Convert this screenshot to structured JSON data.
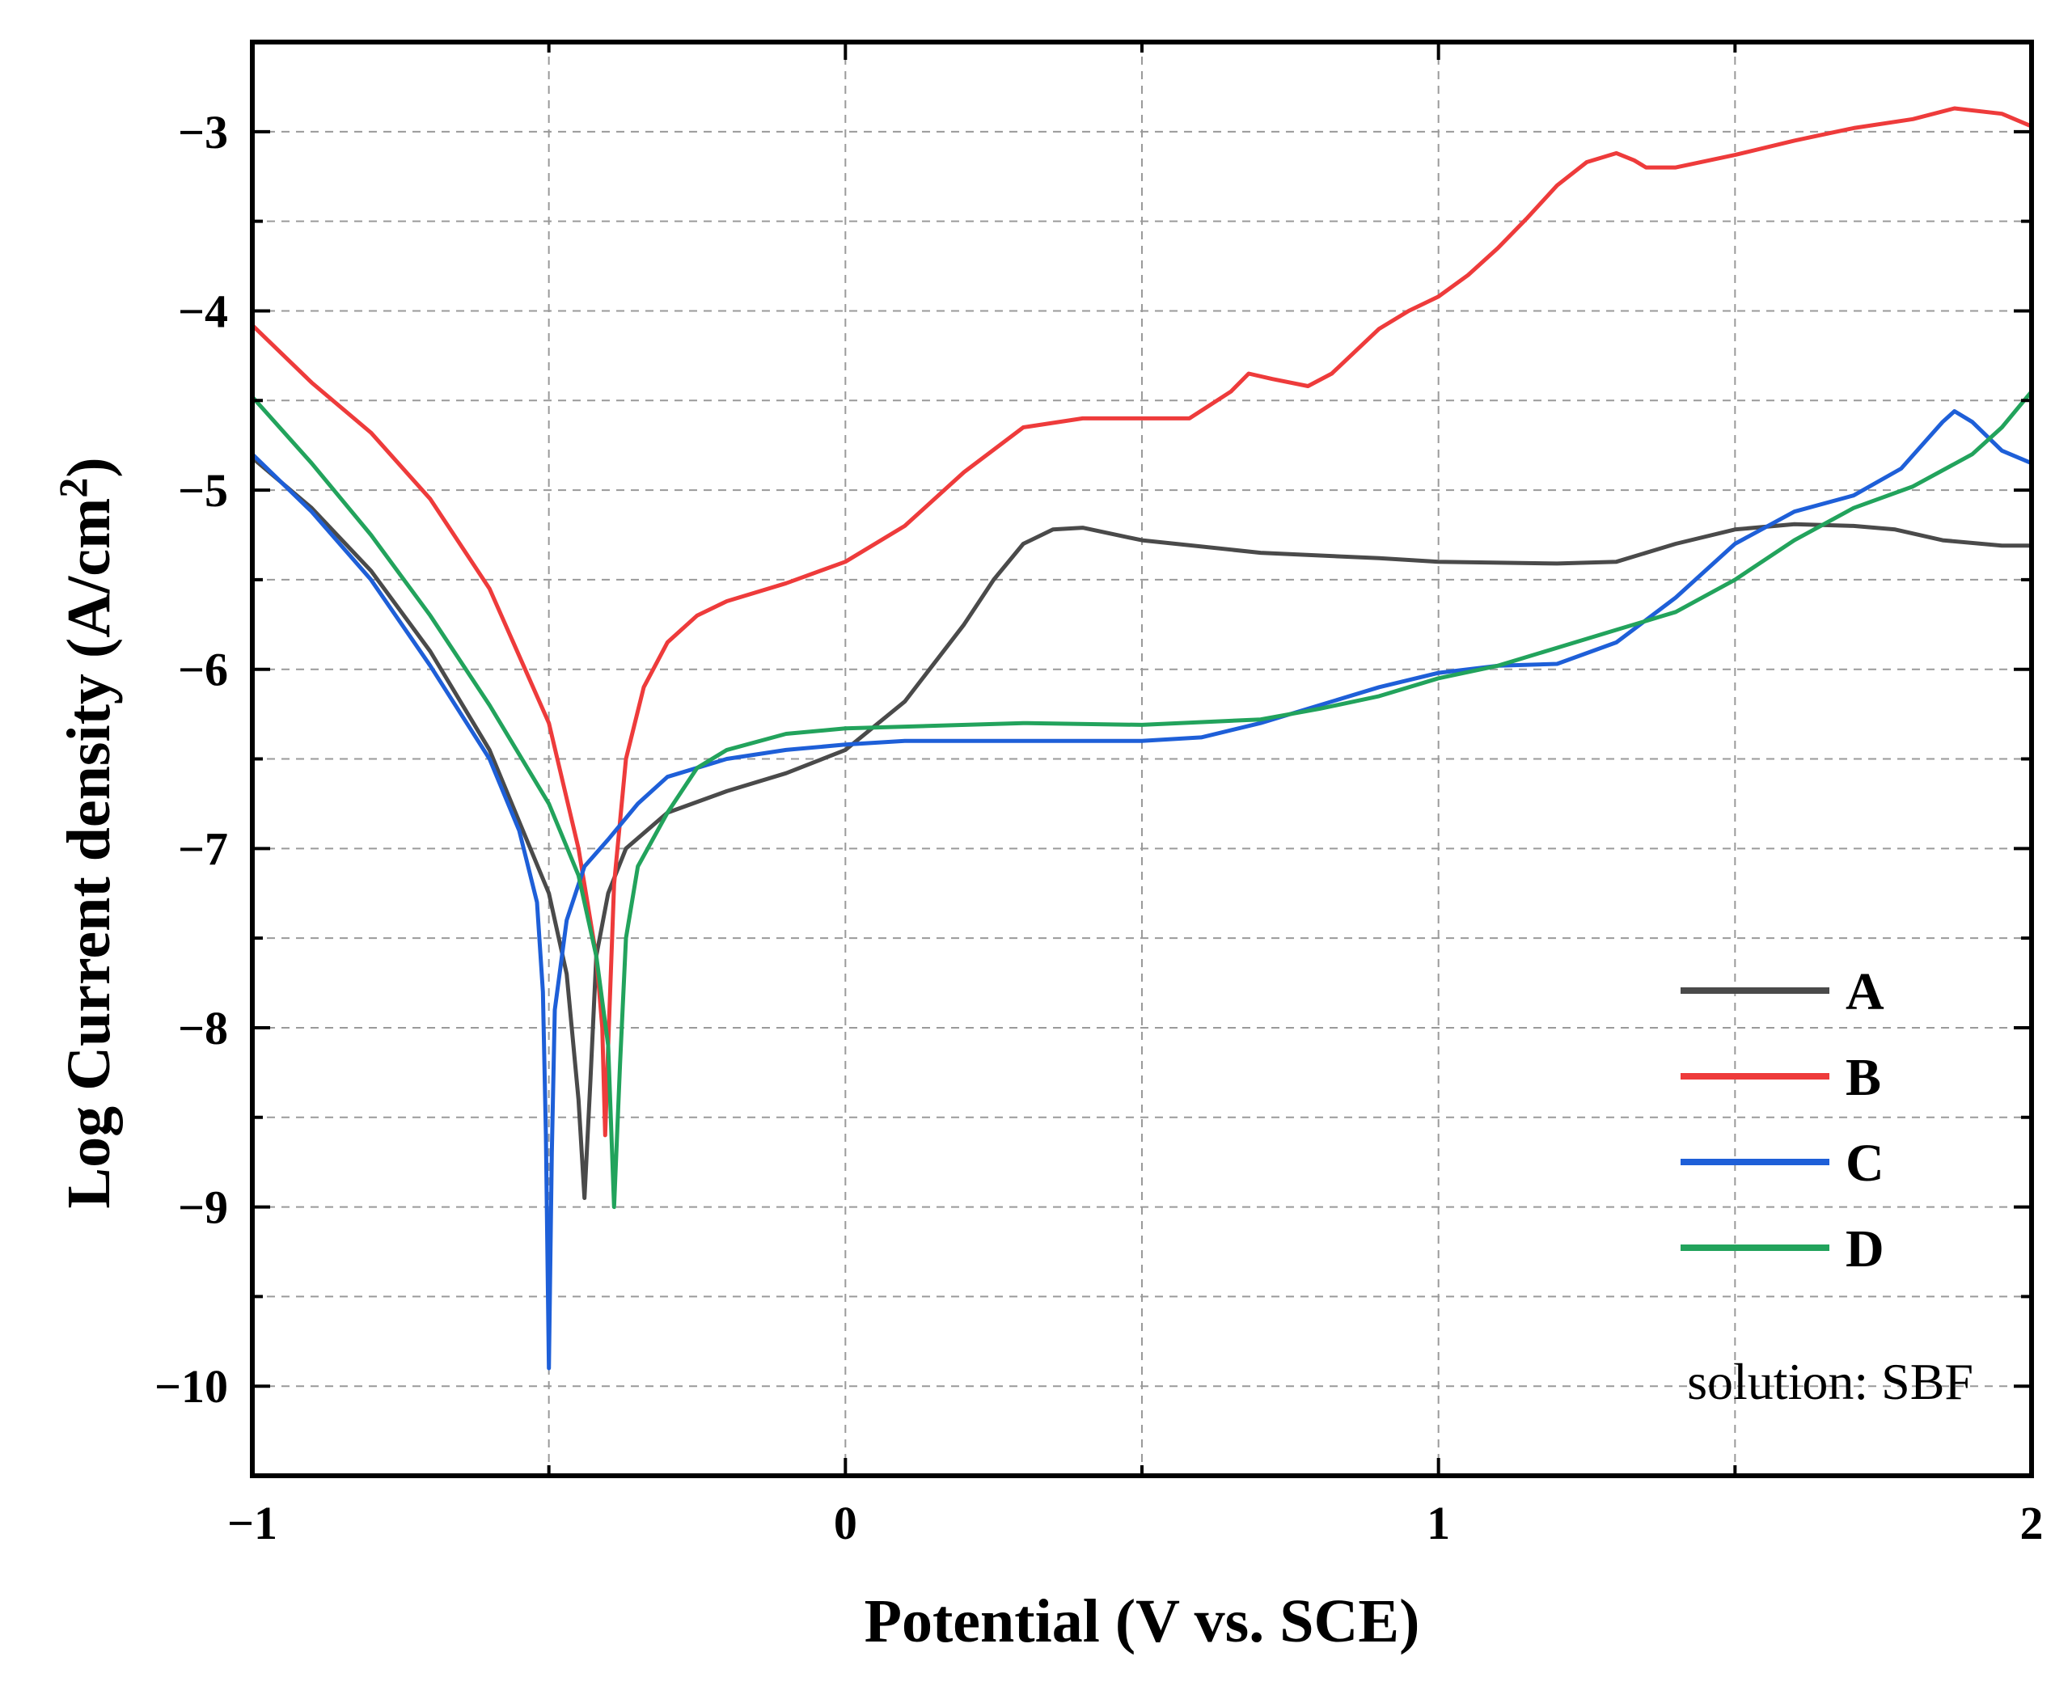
{
  "chart_data": {
    "type": "line",
    "title": "",
    "xlabel": "Potential (V vs. SCE)",
    "ylabel_main": "Log Current density (A/cm",
    "ylabel_sup": "2",
    "ylabel_close": ")",
    "xlim": [
      -1,
      2
    ],
    "ylim": [
      -10.5,
      -2.5
    ],
    "xticks": [
      -1,
      0,
      1,
      2
    ],
    "xtick_labels": [
      "−1",
      "0",
      "1",
      "2"
    ],
    "yticks": [
      -10,
      -9,
      -8,
      -7,
      -6,
      -5,
      -4,
      -3
    ],
    "ytick_labels": [
      "−10",
      "−9",
      "−8",
      "−7",
      "−6",
      "−5",
      "−4",
      "−3"
    ],
    "grid": true,
    "legend_position": "bottom-right",
    "annotation": "solution: SBF",
    "series": [
      {
        "name": "A",
        "color": "#4a4a4a",
        "points": [
          [
            -1.0,
            -4.82
          ],
          [
            -0.9,
            -5.1
          ],
          [
            -0.8,
            -5.45
          ],
          [
            -0.7,
            -5.9
          ],
          [
            -0.6,
            -6.45
          ],
          [
            -0.55,
            -6.85
          ],
          [
            -0.5,
            -7.25
          ],
          [
            -0.47,
            -7.7
          ],
          [
            -0.45,
            -8.4
          ],
          [
            -0.44,
            -8.95
          ],
          [
            -0.43,
            -8.3
          ],
          [
            -0.42,
            -7.6
          ],
          [
            -0.4,
            -7.25
          ],
          [
            -0.37,
            -7.0
          ],
          [
            -0.3,
            -6.8
          ],
          [
            -0.2,
            -6.68
          ],
          [
            -0.1,
            -6.58
          ],
          [
            0.0,
            -6.45
          ],
          [
            0.1,
            -6.18
          ],
          [
            0.2,
            -5.75
          ],
          [
            0.25,
            -5.5
          ],
          [
            0.3,
            -5.3
          ],
          [
            0.35,
            -5.22
          ],
          [
            0.4,
            -5.21
          ],
          [
            0.5,
            -5.28
          ],
          [
            0.7,
            -5.35
          ],
          [
            0.9,
            -5.38
          ],
          [
            1.0,
            -5.4
          ],
          [
            1.2,
            -5.41
          ],
          [
            1.3,
            -5.4
          ],
          [
            1.4,
            -5.3
          ],
          [
            1.5,
            -5.22
          ],
          [
            1.6,
            -5.19
          ],
          [
            1.7,
            -5.2
          ],
          [
            1.77,
            -5.22
          ],
          [
            1.85,
            -5.28
          ],
          [
            1.95,
            -5.31
          ],
          [
            2.0,
            -5.31
          ]
        ]
      },
      {
        "name": "B",
        "color": "#ee3b3b",
        "points": [
          [
            -1.0,
            -4.08
          ],
          [
            -0.9,
            -4.4
          ],
          [
            -0.8,
            -4.68
          ],
          [
            -0.7,
            -5.05
          ],
          [
            -0.6,
            -5.55
          ],
          [
            -0.5,
            -6.3
          ],
          [
            -0.45,
            -7.0
          ],
          [
            -0.42,
            -7.6
          ],
          [
            -0.41,
            -8.0
          ],
          [
            -0.405,
            -8.6
          ],
          [
            -0.4,
            -8.1
          ],
          [
            -0.39,
            -7.2
          ],
          [
            -0.37,
            -6.5
          ],
          [
            -0.34,
            -6.1
          ],
          [
            -0.3,
            -5.85
          ],
          [
            -0.25,
            -5.7
          ],
          [
            -0.2,
            -5.62
          ],
          [
            -0.1,
            -5.52
          ],
          [
            0.0,
            -5.4
          ],
          [
            0.1,
            -5.2
          ],
          [
            0.2,
            -4.9
          ],
          [
            0.3,
            -4.65
          ],
          [
            0.4,
            -4.6
          ],
          [
            0.5,
            -4.6
          ],
          [
            0.58,
            -4.6
          ],
          [
            0.65,
            -4.45
          ],
          [
            0.68,
            -4.35
          ],
          [
            0.72,
            -4.38
          ],
          [
            0.78,
            -4.42
          ],
          [
            0.82,
            -4.35
          ],
          [
            0.9,
            -4.1
          ],
          [
            0.95,
            -4.0
          ],
          [
            1.0,
            -3.92
          ],
          [
            1.05,
            -3.8
          ],
          [
            1.1,
            -3.65
          ],
          [
            1.15,
            -3.48
          ],
          [
            1.2,
            -3.3
          ],
          [
            1.25,
            -3.17
          ],
          [
            1.3,
            -3.12
          ],
          [
            1.33,
            -3.16
          ],
          [
            1.35,
            -3.2
          ],
          [
            1.4,
            -3.2
          ],
          [
            1.5,
            -3.13
          ],
          [
            1.6,
            -3.05
          ],
          [
            1.7,
            -2.98
          ],
          [
            1.8,
            -2.93
          ],
          [
            1.87,
            -2.87
          ],
          [
            1.95,
            -2.9
          ],
          [
            2.0,
            -2.97
          ]
        ]
      },
      {
        "name": "C",
        "color": "#1e5fd8",
        "points": [
          [
            -1.0,
            -4.8
          ],
          [
            -0.9,
            -5.12
          ],
          [
            -0.8,
            -5.5
          ],
          [
            -0.7,
            -5.98
          ],
          [
            -0.6,
            -6.5
          ],
          [
            -0.55,
            -6.9
          ],
          [
            -0.52,
            -7.3
          ],
          [
            -0.51,
            -7.8
          ],
          [
            -0.505,
            -8.6
          ],
          [
            -0.5,
            -9.9
          ],
          [
            -0.495,
            -8.7
          ],
          [
            -0.49,
            -7.9
          ],
          [
            -0.47,
            -7.4
          ],
          [
            -0.44,
            -7.1
          ],
          [
            -0.4,
            -6.95
          ],
          [
            -0.35,
            -6.75
          ],
          [
            -0.3,
            -6.6
          ],
          [
            -0.2,
            -6.5
          ],
          [
            -0.1,
            -6.45
          ],
          [
            0.0,
            -6.42
          ],
          [
            0.1,
            -6.4
          ],
          [
            0.3,
            -6.4
          ],
          [
            0.5,
            -6.4
          ],
          [
            0.6,
            -6.38
          ],
          [
            0.7,
            -6.3
          ],
          [
            0.8,
            -6.2
          ],
          [
            0.9,
            -6.1
          ],
          [
            1.0,
            -6.02
          ],
          [
            1.1,
            -5.98
          ],
          [
            1.2,
            -5.97
          ],
          [
            1.3,
            -5.85
          ],
          [
            1.4,
            -5.6
          ],
          [
            1.5,
            -5.3
          ],
          [
            1.6,
            -5.12
          ],
          [
            1.7,
            -5.03
          ],
          [
            1.78,
            -4.88
          ],
          [
            1.85,
            -4.62
          ],
          [
            1.87,
            -4.56
          ],
          [
            1.9,
            -4.62
          ],
          [
            1.95,
            -4.78
          ],
          [
            2.0,
            -4.85
          ]
        ]
      },
      {
        "name": "D",
        "color": "#22a35c",
        "points": [
          [
            -1.0,
            -4.48
          ],
          [
            -0.9,
            -4.85
          ],
          [
            -0.8,
            -5.25
          ],
          [
            -0.7,
            -5.7
          ],
          [
            -0.6,
            -6.2
          ],
          [
            -0.5,
            -6.75
          ],
          [
            -0.45,
            -7.15
          ],
          [
            -0.42,
            -7.6
          ],
          [
            -0.4,
            -8.1
          ],
          [
            -0.39,
            -9.0
          ],
          [
            -0.38,
            -8.2
          ],
          [
            -0.37,
            -7.5
          ],
          [
            -0.35,
            -7.1
          ],
          [
            -0.3,
            -6.8
          ],
          [
            -0.25,
            -6.55
          ],
          [
            -0.2,
            -6.45
          ],
          [
            -0.1,
            -6.36
          ],
          [
            0.0,
            -6.33
          ],
          [
            0.1,
            -6.32
          ],
          [
            0.3,
            -6.3
          ],
          [
            0.5,
            -6.31
          ],
          [
            0.7,
            -6.28
          ],
          [
            0.8,
            -6.22
          ],
          [
            0.9,
            -6.15
          ],
          [
            1.0,
            -6.05
          ],
          [
            1.1,
            -5.98
          ],
          [
            1.2,
            -5.88
          ],
          [
            1.3,
            -5.78
          ],
          [
            1.4,
            -5.68
          ],
          [
            1.5,
            -5.5
          ],
          [
            1.6,
            -5.28
          ],
          [
            1.7,
            -5.1
          ],
          [
            1.8,
            -4.98
          ],
          [
            1.9,
            -4.8
          ],
          [
            1.95,
            -4.65
          ],
          [
            2.0,
            -4.45
          ]
        ]
      }
    ]
  }
}
